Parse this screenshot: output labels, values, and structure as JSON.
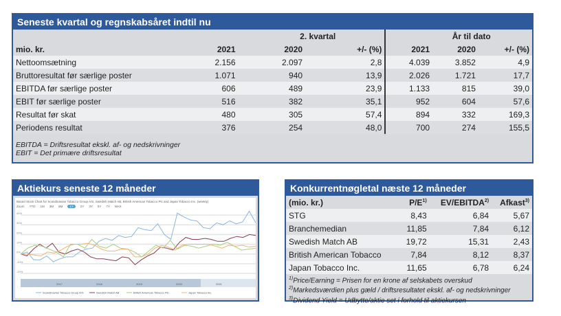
{
  "top": {
    "title": "Seneste kvartal og regnskabsåret indtil nu",
    "group1": "2. kvartal",
    "group2": "År til dato",
    "unit": "mio. kr.",
    "cols": [
      "2021",
      "2020",
      "+/- (%)",
      "2021",
      "2020",
      "+/- (%)"
    ],
    "rows": [
      [
        "Nettoomsætning",
        "2.156",
        "2.097",
        "2,8",
        "4.039",
        "3.852",
        "4,9"
      ],
      [
        "Bruttoresultat før særlige poster",
        "1.071",
        "940",
        "13,9",
        "2.026",
        "1.721",
        "17,7"
      ],
      [
        "EBITDA før særlige poster",
        "606",
        "489",
        "23,9",
        "1.133",
        "815",
        "39,0"
      ],
      [
        "EBIT før særlige poster",
        "516",
        "382",
        "35,1",
        "952",
        "604",
        "57,6"
      ],
      [
        "Resultat før skat",
        "480",
        "305",
        "57,4",
        "894",
        "332",
        "169,3"
      ],
      [
        "Periodens resultat",
        "376",
        "254",
        "48,0",
        "700",
        "274",
        "155,5"
      ]
    ],
    "notes": [
      "EBITDA = Driftsresultat ekskl. af- og nedskrivninger",
      "EBIT = Det primære driftsresultat"
    ]
  },
  "chart_panel": {
    "title": "Aktiekurs seneste 12 måneder"
  },
  "chart_data": {
    "type": "line",
    "title": "Based Stock Chart for Scandinavian Tobacco Group A/S, Swedish Match AB, British American Tobacco Plc and Japan Tobacco Inc. (weekly)",
    "zoom_label": "Zoom",
    "zoom_buttons": [
      "YTD",
      "1M",
      "3M",
      "6M",
      "1Y",
      "2Y",
      "3Y",
      "5Y",
      "7Y",
      "MAX"
    ],
    "active_zoom": "1Y",
    "y_ticks": [
      "40%",
      "30%",
      "20%",
      "10%",
      "0%",
      "-10%",
      "-20%"
    ],
    "ylim": [
      -20,
      45
    ],
    "navigator_years": [
      "2017",
      "2018",
      "2019",
      "2020",
      "2021"
    ],
    "series": [
      {
        "name": "Scandinavian Tobacco Group A/S",
        "color": "#8ab4e0",
        "values": [
          0,
          2,
          -6,
          -6,
          -2,
          -8,
          -5,
          -3,
          -3,
          2,
          5,
          6,
          13,
          16,
          14,
          19,
          17,
          18,
          27,
          25,
          24,
          31,
          20,
          15,
          42,
          38,
          35,
          34,
          27,
          26,
          32,
          30,
          34,
          31,
          33,
          44,
          32
        ]
      },
      {
        "name": "Swedish Match AB",
        "color": "#8b3a4f",
        "values": [
          0,
          -2,
          5,
          10,
          6,
          11,
          2,
          0,
          3,
          5,
          2,
          -3,
          -5,
          -5,
          -6,
          -7,
          -3,
          -4,
          -11,
          -6,
          -2,
          1,
          7,
          6,
          4,
          12,
          17,
          15,
          15,
          16,
          15,
          13,
          13,
          16,
          18,
          17,
          20,
          19
        ]
      },
      {
        "name": "British American Tobacco Plc",
        "color": "#a6d07a",
        "values": [
          0,
          6,
          9,
          8,
          5,
          2,
          -3,
          10,
          10,
          6,
          15,
          8,
          6,
          10,
          6,
          5,
          2,
          -3,
          3,
          9,
          6,
          14,
          5,
          9,
          8,
          6,
          8,
          10,
          9,
          12,
          8,
          4,
          5,
          6
        ]
      },
      {
        "name": "Japan Tobacco Inc.",
        "color": "#f2b272",
        "values": [
          0,
          0,
          -1,
          -2,
          2,
          1,
          4,
          8,
          10,
          10,
          11,
          9,
          5,
          3,
          3,
          5,
          5,
          -3,
          -3,
          0,
          6,
          9,
          7,
          4,
          9,
          10,
          10,
          10,
          10,
          8,
          6,
          9,
          8,
          9,
          7,
          8
        ]
      }
    ]
  },
  "comp": {
    "title": "Konkurrentnøgletal næste 12 måneder",
    "cols": [
      "(mio. kr.)",
      "P/E",
      "EV/EBITDA",
      "Afkast"
    ],
    "sups": [
      "1)",
      "2)",
      "3)"
    ],
    "rows": [
      [
        "STG",
        "8,43",
        "6,84",
        "5,67"
      ],
      [
        "Branchemedian",
        "11,85",
        "7,84",
        "6,12"
      ],
      [
        "Swedish Match AB",
        "19,72",
        "15,31",
        "2,43"
      ],
      [
        "British American Tobacco",
        "7,84",
        "8,12",
        "8,37"
      ],
      [
        "Japan Tobacco Inc.",
        "11,65",
        "6,78",
        "6,24"
      ]
    ],
    "notes": [
      [
        "1)",
        "Price/Earning = Prisen for en krone af selskabets overskud"
      ],
      [
        "2)",
        "Markedsværdien plus gæld / driftsresultatet ekskl. af- og nedskrivninger"
      ],
      [
        "3)",
        "Dividend Yield = Udbytte/aktie set i forhold til aktiekursen"
      ]
    ]
  }
}
